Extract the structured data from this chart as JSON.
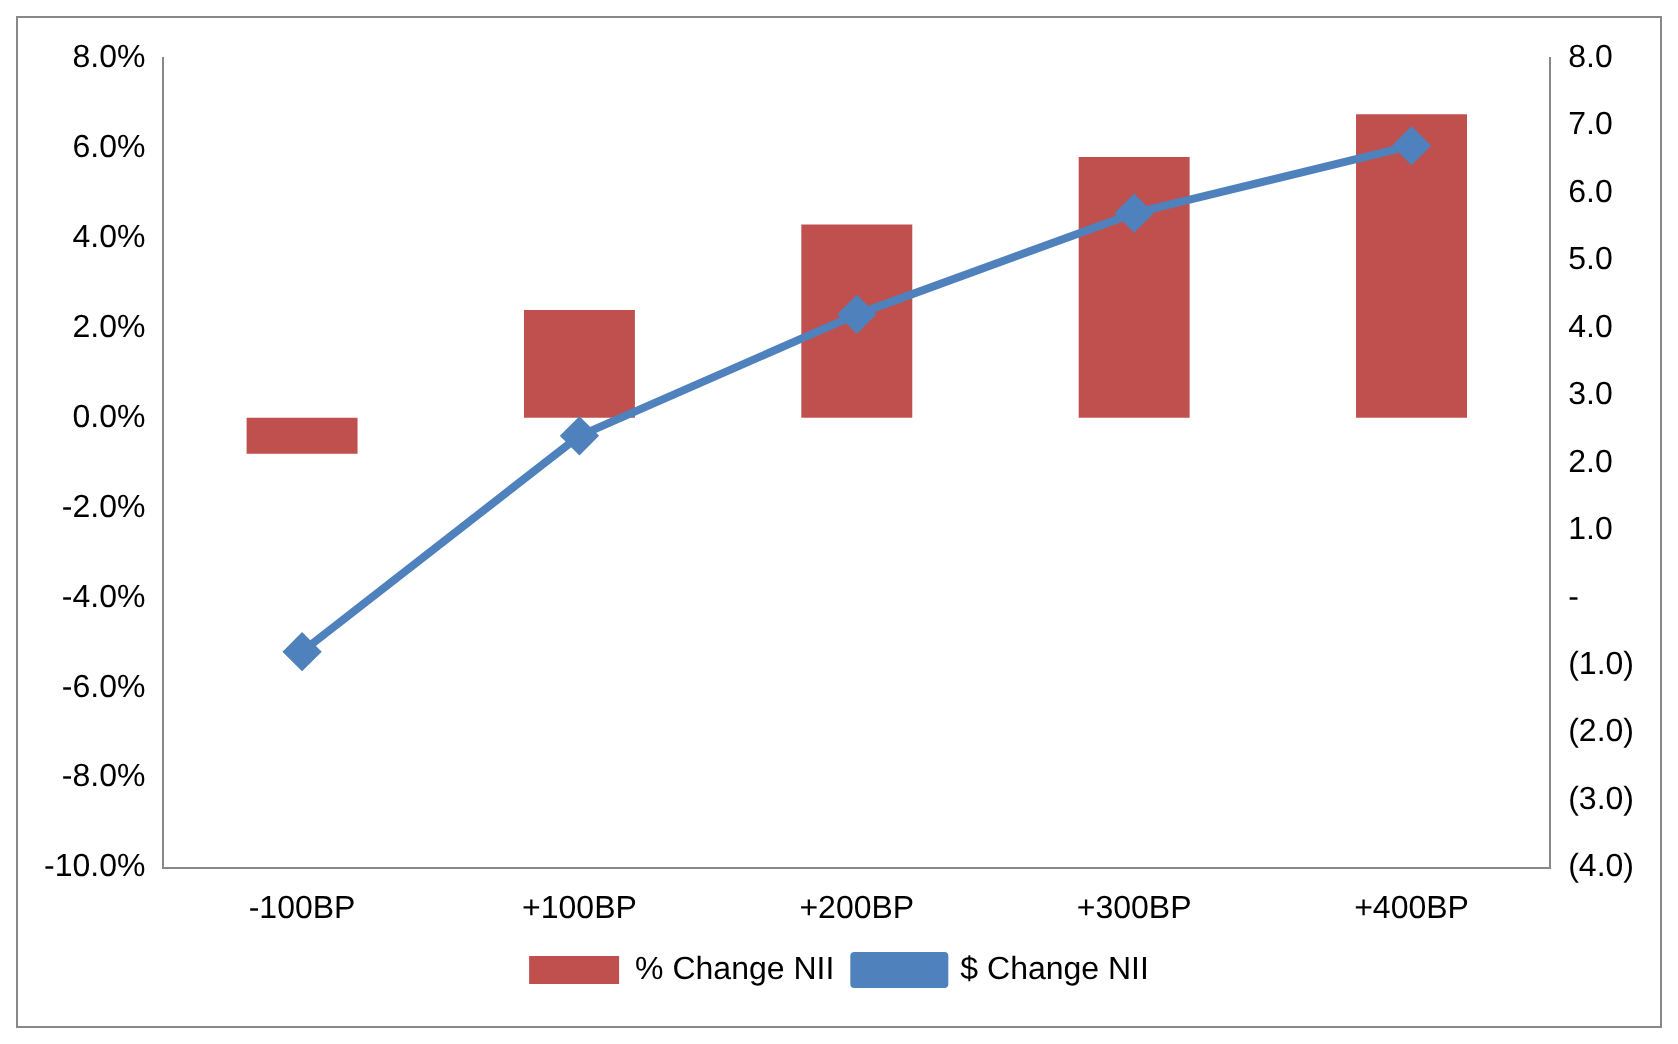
{
  "chart_data": {
    "type": "bar",
    "categories": [
      "-100BP",
      "+100BP",
      "+200BP",
      "+300BP",
      "+400BP"
    ],
    "series": [
      {
        "name": "% Change NII",
        "color": "#c0504d",
        "values": [
          -0.8,
          2.4,
          4.3,
          5.8,
          6.75
        ]
      },
      {
        "name": "$ Change NII",
        "type": "line",
        "axis": "y2",
        "color": "#4f81bd",
        "marker": "diamond",
        "values": [
          -0.8,
          2.4,
          4.2,
          5.7,
          6.7
        ]
      }
    ],
    "ylim": [
      -10,
      8
    ],
    "yticks": [
      {
        "value": -10,
        "label": "-10.0%"
      },
      {
        "value": -8,
        "label": "-8.0%"
      },
      {
        "value": -6,
        "label": "-6.0%"
      },
      {
        "value": -4,
        "label": "-4.0%"
      },
      {
        "value": -2,
        "label": "-2.0%"
      },
      {
        "value": 0,
        "label": "0.0%"
      },
      {
        "value": 2,
        "label": "2.0%"
      },
      {
        "value": 4,
        "label": "4.0%"
      },
      {
        "value": 6,
        "label": "6.0%"
      },
      {
        "value": 8,
        "label": "8.0%"
      }
    ],
    "y2lim": [
      -4,
      8
    ],
    "y2ticks": [
      {
        "value": -4,
        "label": "(4.0)"
      },
      {
        "value": -3,
        "label": "(3.0)"
      },
      {
        "value": -2,
        "label": "(2.0)"
      },
      {
        "value": -1,
        "label": "(1.0)"
      },
      {
        "value": 0,
        "label": "-"
      },
      {
        "value": 1,
        "label": "1.0"
      },
      {
        "value": 2,
        "label": "2.0"
      },
      {
        "value": 3,
        "label": "3.0"
      },
      {
        "value": 4,
        "label": "4.0"
      },
      {
        "value": 5,
        "label": "5.0"
      },
      {
        "value": 6,
        "label": "6.0"
      },
      {
        "value": 7,
        "label": "7.0"
      },
      {
        "value": 8,
        "label": "8.0"
      }
    ],
    "grid": false,
    "legend": "bottom"
  }
}
